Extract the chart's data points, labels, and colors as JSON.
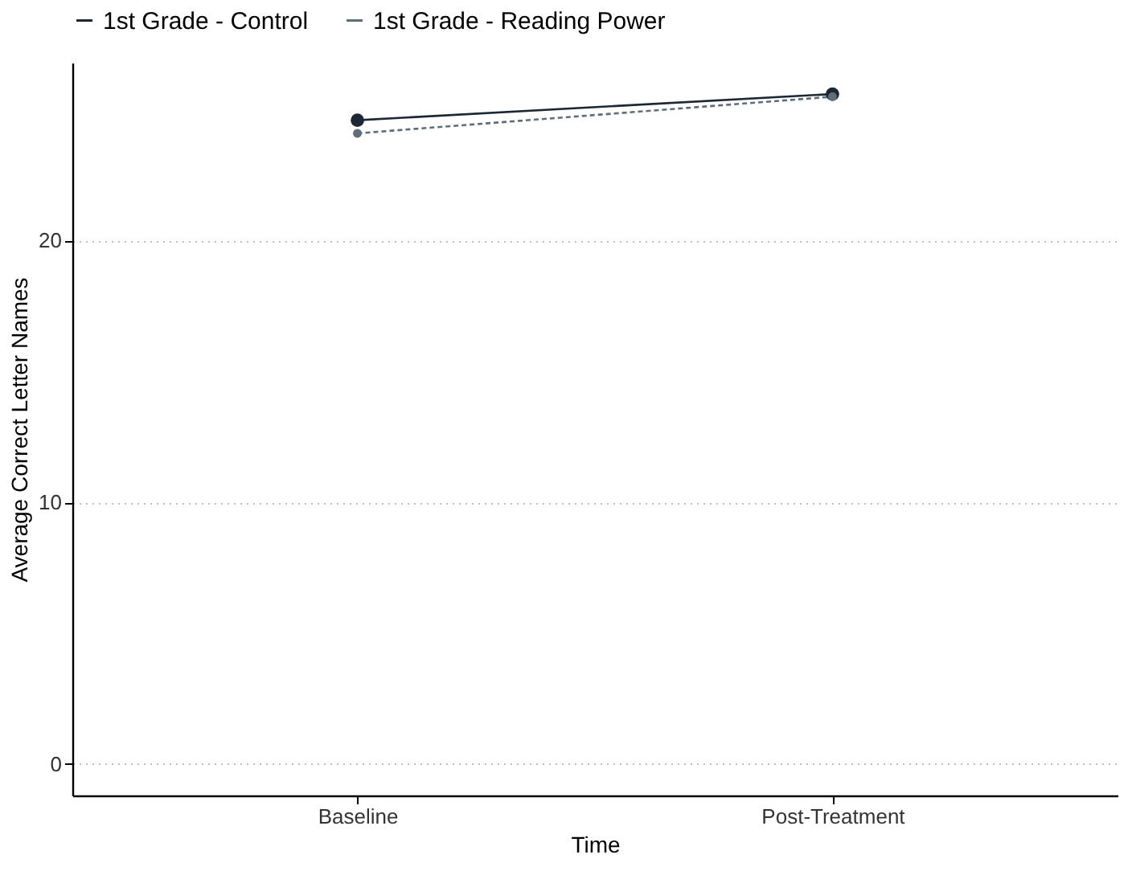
{
  "chart_data": {
    "type": "line",
    "xlabel": "Time",
    "ylabel": "Average Correct Letter Names",
    "categories": [
      "Baseline",
      "Post-Treatment"
    ],
    "series": [
      {
        "name": "1st Grade - Control",
        "color": "#1c2733",
        "values": [
          24.6,
          25.6
        ],
        "line_style": "solid"
      },
      {
        "name": "1st Grade - Reading Power",
        "color": "#5d6d7a",
        "values": [
          24.1,
          25.5
        ],
        "line_style": "dashed"
      }
    ],
    "ylim": [
      -1.2,
      26.8
    ],
    "yticks": [
      0,
      10,
      20
    ],
    "grid": "y",
    "legend": "top",
    "marker": "circle"
  }
}
